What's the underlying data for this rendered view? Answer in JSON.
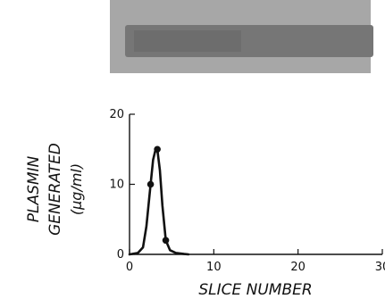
{
  "chart_data": {
    "type": "line",
    "x": [
      2.5,
      3.3,
      4.3
    ],
    "y": [
      10,
      15,
      2
    ],
    "curve_x": [
      0,
      1.0,
      1.6,
      2.0,
      2.5,
      2.8,
      3.1,
      3.3,
      3.6,
      3.9,
      4.3,
      4.8,
      5.5,
      6.5,
      7
    ],
    "curve_y": [
      0,
      0.2,
      1.0,
      4.0,
      10.0,
      13.5,
      15.0,
      15.0,
      12.0,
      7.0,
      2.0,
      0.6,
      0.2,
      0.05,
      0
    ],
    "xlabel": "SLICE NUMBER",
    "ylabel": [
      "PLASMIN",
      "GENERATED",
      "(µg/ml)"
    ],
    "xlim": [
      0,
      30
    ],
    "ylim": [
      0,
      20
    ],
    "xticks": [
      0,
      10,
      20,
      30
    ],
    "yticks": [
      0,
      10,
      20
    ],
    "grid": false,
    "color": "#111111",
    "gel_image": {
      "background": "#9a9a9a",
      "band": "#6f6f6f"
    }
  }
}
